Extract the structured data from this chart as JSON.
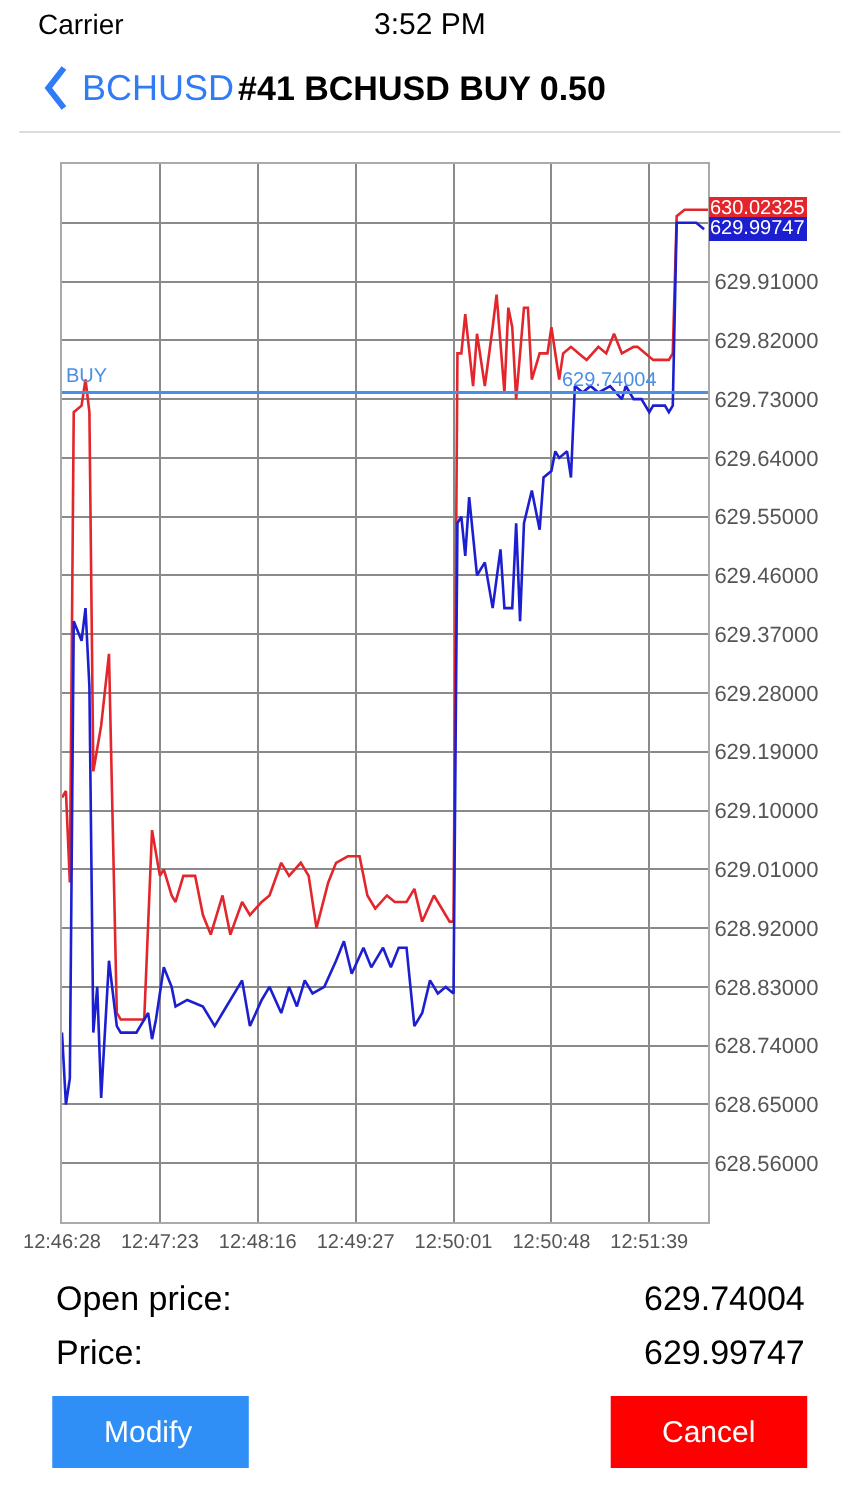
{
  "chart_data": {
    "type": "line",
    "title": "#41 BCHUSD BUY 0.50",
    "categories": [
      "12:46:28",
      null,
      null,
      null,
      null,
      null,
      null,
      null,
      null,
      null,
      null,
      null,
      null,
      null,
      null,
      null,
      null,
      null,
      null,
      null,
      null,
      null,
      null,
      null,
      null,
      "12:47:23",
      null,
      null,
      null,
      null,
      null,
      null,
      null,
      null,
      null,
      null,
      null,
      null,
      null,
      null,
      null,
      null,
      null,
      null,
      null,
      null,
      null,
      null,
      null,
      null,
      "12:48:16",
      null,
      null,
      null,
      null,
      null,
      null,
      null,
      null,
      null,
      null,
      null,
      null,
      null,
      null,
      null,
      null,
      null,
      null,
      null,
      null,
      null,
      null,
      null,
      null,
      "12:49:27",
      null,
      null,
      null,
      null,
      null,
      null,
      null,
      null,
      null,
      null,
      null,
      null,
      null,
      null,
      null,
      null,
      null,
      null,
      null,
      null,
      null,
      null,
      null,
      null,
      "12:50:01",
      null,
      null,
      null,
      null,
      null,
      null,
      null,
      null,
      null,
      null,
      null,
      null,
      null,
      null,
      null,
      null,
      null,
      null,
      null,
      null,
      null,
      null,
      null,
      null,
      "12:50:48",
      null,
      null,
      null,
      null,
      null,
      null,
      null,
      null,
      null,
      null,
      null,
      null,
      null,
      null,
      null,
      null,
      null,
      null,
      null,
      null,
      null,
      null,
      null,
      null,
      "12:51:39",
      null,
      null,
      null,
      null,
      null,
      null,
      null,
      null,
      null,
      null,
      null,
      null,
      null,
      null,
      null
    ],
    "ylim": [
      628.47,
      630.09
    ],
    "yticks": [
      {
        "value": 628.56,
        "label": "628.56000"
      },
      {
        "value": 628.65,
        "label": "628.65000"
      },
      {
        "value": 628.74,
        "label": "628.74000"
      },
      {
        "value": 628.83,
        "label": "628.83000"
      },
      {
        "value": 628.92,
        "label": "628.92000"
      },
      {
        "value": 629.01,
        "label": "629.01000"
      },
      {
        "value": 629.1,
        "label": "629.10000"
      },
      {
        "value": 629.19,
        "label": "629.19000"
      },
      {
        "value": 629.28,
        "label": "629.28000"
      },
      {
        "value": 629.37,
        "label": "629.37000"
      },
      {
        "value": 629.46,
        "label": "629.46000"
      },
      {
        "value": 629.55,
        "label": "629.55000"
      },
      {
        "value": 629.64,
        "label": "629.64000"
      },
      {
        "value": 629.73,
        "label": "629.73000"
      },
      {
        "value": 629.82,
        "label": "629.82000"
      },
      {
        "value": 629.91,
        "label": "629.91000"
      },
      {
        "value": 630.0,
        "label": null
      }
    ],
    "grid": true,
    "marker": "none",
    "line_style": "solid",
    "series": [
      {
        "color": "#e3262b",
        "values": [
          629.12,
          629.13,
          628.99,
          629.71,
          null,
          629.72,
          629.76,
          629.71,
          629.16,
          null,
          629.23,
          null,
          629.34,
          null,
          628.79,
          628.78,
          null,
          null,
          null,
          null,
          null,
          628.78,
          null,
          629.07,
          null,
          629.0,
          629.01,
          null,
          628.97,
          628.96,
          null,
          629.0,
          null,
          null,
          629.0,
          null,
          628.94,
          null,
          628.91,
          null,
          null,
          628.97,
          null,
          628.91,
          null,
          null,
          628.96,
          null,
          628.94,
          null,
          null,
          628.96,
          null,
          628.97,
          null,
          null,
          629.02,
          null,
          629.0,
          null,
          null,
          629.02,
          null,
          629.0,
          null,
          628.92,
          null,
          null,
          628.99,
          null,
          629.02,
          null,
          null,
          629.03,
          629.03,
          null,
          629.03,
          null,
          628.97,
          null,
          628.95,
          null,
          null,
          628.97,
          null,
          628.96,
          null,
          null,
          628.96,
          null,
          628.98,
          null,
          628.93,
          null,
          null,
          628.97,
          null,
          628.95,
          null,
          628.93,
          628.93,
          629.8,
          629.8,
          629.86,
          null,
          629.75,
          629.83,
          null,
          629.75,
          null,
          629.84,
          629.89,
          null,
          629.74,
          629.87,
          629.84,
          629.73,
          null,
          629.87,
          629.87,
          629.76,
          null,
          629.8,
          null,
          629.8,
          629.84,
          null,
          629.76,
          629.8,
          null,
          629.81,
          null,
          629.8,
          null,
          629.79,
          null,
          null,
          629.81,
          null,
          629.8,
          null,
          629.83,
          null,
          629.8,
          null,
          null,
          629.81,
          629.81,
          null,
          null,
          null,
          629.79,
          null,
          629.79,
          null,
          629.79,
          629.8,
          630.01,
          null,
          630.02,
          630.02,
          null,
          null,
          null,
          630.02,
          630.02
        ]
      },
      {
        "color": "#1c1fd0",
        "values": [
          628.76,
          628.65,
          628.69,
          629.39,
          null,
          629.36,
          629.41,
          629.29,
          628.76,
          628.83,
          628.66,
          null,
          628.87,
          null,
          628.77,
          628.76,
          null,
          null,
          null,
          628.76,
          null,
          null,
          628.79,
          628.75,
          628.78,
          null,
          628.86,
          null,
          628.83,
          628.8,
          null,
          null,
          628.81,
          null,
          null,
          null,
          628.8,
          null,
          null,
          628.77,
          null,
          628.79,
          null,
          null,
          null,
          null,
          628.84,
          null,
          628.77,
          null,
          null,
          628.81,
          null,
          628.83,
          null,
          null,
          628.79,
          null,
          628.83,
          null,
          628.8,
          null,
          628.84,
          null,
          628.82,
          null,
          null,
          628.83,
          null,
          null,
          628.87,
          null,
          628.9,
          null,
          628.85,
          null,
          null,
          628.89,
          null,
          628.86,
          null,
          null,
          628.89,
          null,
          628.86,
          null,
          628.89,
          null,
          628.89,
          null,
          628.77,
          null,
          628.79,
          null,
          628.84,
          null,
          628.82,
          null,
          628.83,
          null,
          628.82,
          629.54,
          629.55,
          629.49,
          629.58,
          null,
          629.46,
          null,
          629.48,
          null,
          629.41,
          null,
          629.5,
          629.41,
          null,
          629.41,
          629.54,
          629.39,
          629.54,
          null,
          629.59,
          null,
          629.53,
          629.61,
          null,
          629.62,
          629.65,
          629.64,
          null,
          629.65,
          629.61,
          629.75,
          null,
          629.74,
          null,
          629.75,
          null,
          629.74,
          null,
          null,
          629.75,
          null,
          null,
          629.73,
          629.75,
          null,
          629.73,
          null,
          629.73,
          null,
          629.71,
          629.72,
          null,
          null,
          629.72,
          629.71,
          629.72,
          630.0,
          null,
          630.0,
          null,
          null,
          630.0,
          null,
          629.99,
          null
        ]
      }
    ],
    "ref_lines": [
      {
        "axis": "y",
        "value": 629.74004,
        "label": "BUY",
        "color": "#4a90e2"
      }
    ],
    "annotations": [
      {
        "text": "629.74004",
        "y": 629.74004
      },
      "630.02325",
      "629.99747",
      "Carrier",
      "3:52 PM",
      "BCHUSD",
      "Open price:",
      "629.74004",
      "Price:",
      "629.99747",
      "Modify",
      "Cancel"
    ]
  }
}
